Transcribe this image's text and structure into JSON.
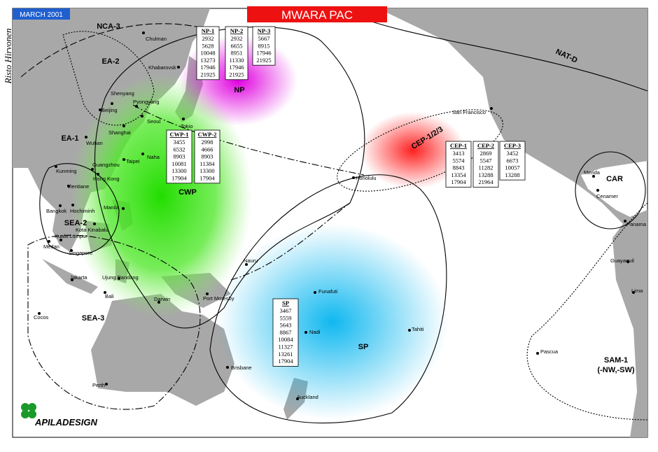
{
  "title": "MWARA PAC",
  "date": "MARCH 2001",
  "author": "Risto Hirvonen",
  "logo": "APILADESIGN",
  "regions": [
    "NCA-3",
    "EA-2",
    "EA-1",
    "NP",
    "CWP",
    "SEA-2",
    "SEA-3",
    "SP",
    "CEP-1/2/3",
    "NAT-D",
    "CAR",
    "SAM-1",
    "(-NW,-SW)"
  ],
  "cities": [
    "Chulman",
    "Khabarovsk",
    "Shenyang",
    "Pyongyang",
    "Beijing",
    "Seoul",
    "Shanghai",
    "Tokio",
    "Wuhan",
    "Naha",
    "Taipei",
    "Kunming",
    "Guangzhou",
    "Hong Kong",
    "Vientiane",
    "Bangkok",
    "Hochiminh",
    "Manila",
    "Kota Kinabalu",
    "Kuala Lumpur",
    "Medan",
    "Singapore",
    "Jakarta",
    "Ujung Pandang",
    "Bali",
    "Darwin",
    "Port Moresby",
    "Cocos",
    "Perth",
    "Brisbane",
    "Nauru",
    "Funafuti",
    "Nadi",
    "Tahiti",
    "Auckland",
    "Honolulu",
    "San Francisco",
    "Merida",
    "Cenamer",
    "Panama",
    "Guayaquil",
    "Lima",
    "Pascua"
  ],
  "tables": [
    {
      "name": "NP-1",
      "frequencies": [
        2932,
        5628,
        10048,
        13273,
        17946,
        21925
      ]
    },
    {
      "name": "NP-2",
      "frequencies": [
        2932,
        6655,
        8951,
        11330,
        17946,
        21925
      ]
    },
    {
      "name": "NP-3",
      "frequencies": [
        5667,
        8915,
        17946,
        21925
      ]
    },
    {
      "name": "CWP-1",
      "frequencies": [
        3455,
        6532,
        8903,
        10081,
        13300,
        17904
      ]
    },
    {
      "name": "CWP-2",
      "frequencies": [
        2998,
        4666,
        8903,
        11384,
        13300,
        17904
      ]
    },
    {
      "name": "CEP-1",
      "frequencies": [
        3413,
        5574,
        8843,
        13354,
        17904
      ]
    },
    {
      "name": "CEP-2",
      "frequencies": [
        2869,
        5547,
        11282,
        13288,
        21964
      ]
    },
    {
      "name": "CEP-3",
      "frequencies": [
        3452,
        6673,
        10057,
        13288
      ]
    },
    {
      "name": "SP",
      "frequencies": [
        3467,
        5559,
        5643,
        8867,
        10084,
        11327,
        13261,
        17904
      ]
    }
  ]
}
